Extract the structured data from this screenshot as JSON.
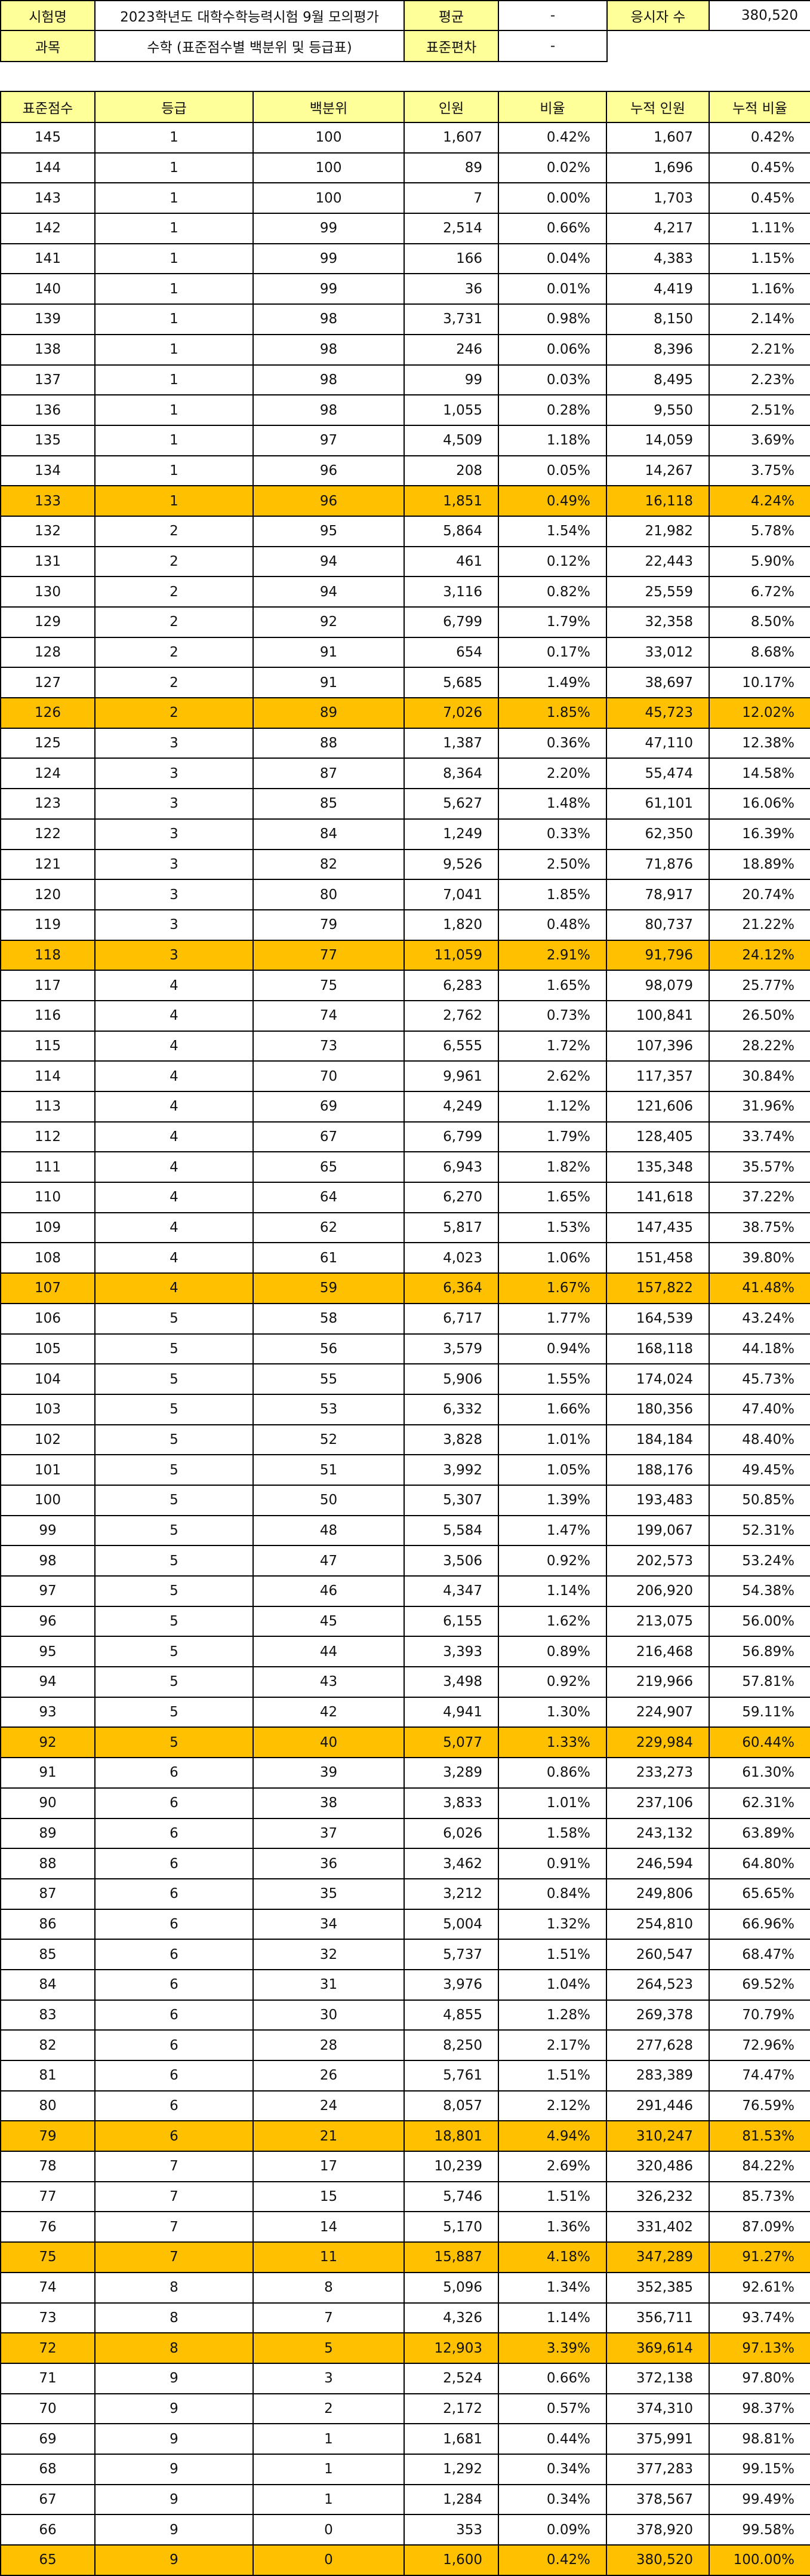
{
  "info": {
    "exam_label": "시험명",
    "exam_value": "2023학년도 대학수학능력시험 9월 모의평가",
    "mean_label": "평균",
    "mean_value": "-",
    "count_label": "응시자 수",
    "count_value": "380,520",
    "subject_label": "과목",
    "subject_value": "수학 (표준점수별 백분위 및 등급표)",
    "sd_label": "표준편차",
    "sd_value": "-"
  },
  "table": {
    "headers": [
      "표준점수",
      "등급",
      "백분위",
      "인원",
      "비율",
      "누적 인원",
      "누적 비율"
    ],
    "rows": [
      {
        "score": "145",
        "grade": "1",
        "pct": "100",
        "count": "1,607",
        "ratio": "0.42%",
        "cum": "1,607",
        "cumratio": "0.42%",
        "hl": false
      },
      {
        "score": "144",
        "grade": "1",
        "pct": "100",
        "count": "89",
        "ratio": "0.02%",
        "cum": "1,696",
        "cumratio": "0.45%",
        "hl": false
      },
      {
        "score": "143",
        "grade": "1",
        "pct": "100",
        "count": "7",
        "ratio": "0.00%",
        "cum": "1,703",
        "cumratio": "0.45%",
        "hl": false
      },
      {
        "score": "142",
        "grade": "1",
        "pct": "99",
        "count": "2,514",
        "ratio": "0.66%",
        "cum": "4,217",
        "cumratio": "1.11%",
        "hl": false
      },
      {
        "score": "141",
        "grade": "1",
        "pct": "99",
        "count": "166",
        "ratio": "0.04%",
        "cum": "4,383",
        "cumratio": "1.15%",
        "hl": false
      },
      {
        "score": "140",
        "grade": "1",
        "pct": "99",
        "count": "36",
        "ratio": "0.01%",
        "cum": "4,419",
        "cumratio": "1.16%",
        "hl": false
      },
      {
        "score": "139",
        "grade": "1",
        "pct": "98",
        "count": "3,731",
        "ratio": "0.98%",
        "cum": "8,150",
        "cumratio": "2.14%",
        "hl": false
      },
      {
        "score": "138",
        "grade": "1",
        "pct": "98",
        "count": "246",
        "ratio": "0.06%",
        "cum": "8,396",
        "cumratio": "2.21%",
        "hl": false
      },
      {
        "score": "137",
        "grade": "1",
        "pct": "98",
        "count": "99",
        "ratio": "0.03%",
        "cum": "8,495",
        "cumratio": "2.23%",
        "hl": false
      },
      {
        "score": "136",
        "grade": "1",
        "pct": "98",
        "count": "1,055",
        "ratio": "0.28%",
        "cum": "9,550",
        "cumratio": "2.51%",
        "hl": false
      },
      {
        "score": "135",
        "grade": "1",
        "pct": "97",
        "count": "4,509",
        "ratio": "1.18%",
        "cum": "14,059",
        "cumratio": "3.69%",
        "hl": false
      },
      {
        "score": "134",
        "grade": "1",
        "pct": "96",
        "count": "208",
        "ratio": "0.05%",
        "cum": "14,267",
        "cumratio": "3.75%",
        "hl": false
      },
      {
        "score": "133",
        "grade": "1",
        "pct": "96",
        "count": "1,851",
        "ratio": "0.49%",
        "cum": "16,118",
        "cumratio": "4.24%",
        "hl": true
      },
      {
        "score": "132",
        "grade": "2",
        "pct": "95",
        "count": "5,864",
        "ratio": "1.54%",
        "cum": "21,982",
        "cumratio": "5.78%",
        "hl": false
      },
      {
        "score": "131",
        "grade": "2",
        "pct": "94",
        "count": "461",
        "ratio": "0.12%",
        "cum": "22,443",
        "cumratio": "5.90%",
        "hl": false
      },
      {
        "score": "130",
        "grade": "2",
        "pct": "94",
        "count": "3,116",
        "ratio": "0.82%",
        "cum": "25,559",
        "cumratio": "6.72%",
        "hl": false
      },
      {
        "score": "129",
        "grade": "2",
        "pct": "92",
        "count": "6,799",
        "ratio": "1.79%",
        "cum": "32,358",
        "cumratio": "8.50%",
        "hl": false
      },
      {
        "score": "128",
        "grade": "2",
        "pct": "91",
        "count": "654",
        "ratio": "0.17%",
        "cum": "33,012",
        "cumratio": "8.68%",
        "hl": false
      },
      {
        "score": "127",
        "grade": "2",
        "pct": "91",
        "count": "5,685",
        "ratio": "1.49%",
        "cum": "38,697",
        "cumratio": "10.17%",
        "hl": false
      },
      {
        "score": "126",
        "grade": "2",
        "pct": "89",
        "count": "7,026",
        "ratio": "1.85%",
        "cum": "45,723",
        "cumratio": "12.02%",
        "hl": true
      },
      {
        "score": "125",
        "grade": "3",
        "pct": "88",
        "count": "1,387",
        "ratio": "0.36%",
        "cum": "47,110",
        "cumratio": "12.38%",
        "hl": false
      },
      {
        "score": "124",
        "grade": "3",
        "pct": "87",
        "count": "8,364",
        "ratio": "2.20%",
        "cum": "55,474",
        "cumratio": "14.58%",
        "hl": false
      },
      {
        "score": "123",
        "grade": "3",
        "pct": "85",
        "count": "5,627",
        "ratio": "1.48%",
        "cum": "61,101",
        "cumratio": "16.06%",
        "hl": false
      },
      {
        "score": "122",
        "grade": "3",
        "pct": "84",
        "count": "1,249",
        "ratio": "0.33%",
        "cum": "62,350",
        "cumratio": "16.39%",
        "hl": false
      },
      {
        "score": "121",
        "grade": "3",
        "pct": "82",
        "count": "9,526",
        "ratio": "2.50%",
        "cum": "71,876",
        "cumratio": "18.89%",
        "hl": false
      },
      {
        "score": "120",
        "grade": "3",
        "pct": "80",
        "count": "7,041",
        "ratio": "1.85%",
        "cum": "78,917",
        "cumratio": "20.74%",
        "hl": false
      },
      {
        "score": "119",
        "grade": "3",
        "pct": "79",
        "count": "1,820",
        "ratio": "0.48%",
        "cum": "80,737",
        "cumratio": "21.22%",
        "hl": false
      },
      {
        "score": "118",
        "grade": "3",
        "pct": "77",
        "count": "11,059",
        "ratio": "2.91%",
        "cum": "91,796",
        "cumratio": "24.12%",
        "hl": true
      },
      {
        "score": "117",
        "grade": "4",
        "pct": "75",
        "count": "6,283",
        "ratio": "1.65%",
        "cum": "98,079",
        "cumratio": "25.77%",
        "hl": false
      },
      {
        "score": "116",
        "grade": "4",
        "pct": "74",
        "count": "2,762",
        "ratio": "0.73%",
        "cum": "100,841",
        "cumratio": "26.50%",
        "hl": false
      },
      {
        "score": "115",
        "grade": "4",
        "pct": "73",
        "count": "6,555",
        "ratio": "1.72%",
        "cum": "107,396",
        "cumratio": "28.22%",
        "hl": false
      },
      {
        "score": "114",
        "grade": "4",
        "pct": "70",
        "count": "9,961",
        "ratio": "2.62%",
        "cum": "117,357",
        "cumratio": "30.84%",
        "hl": false
      },
      {
        "score": "113",
        "grade": "4",
        "pct": "69",
        "count": "4,249",
        "ratio": "1.12%",
        "cum": "121,606",
        "cumratio": "31.96%",
        "hl": false
      },
      {
        "score": "112",
        "grade": "4",
        "pct": "67",
        "count": "6,799",
        "ratio": "1.79%",
        "cum": "128,405",
        "cumratio": "33.74%",
        "hl": false
      },
      {
        "score": "111",
        "grade": "4",
        "pct": "65",
        "count": "6,943",
        "ratio": "1.82%",
        "cum": "135,348",
        "cumratio": "35.57%",
        "hl": false
      },
      {
        "score": "110",
        "grade": "4",
        "pct": "64",
        "count": "6,270",
        "ratio": "1.65%",
        "cum": "141,618",
        "cumratio": "37.22%",
        "hl": false
      },
      {
        "score": "109",
        "grade": "4",
        "pct": "62",
        "count": "5,817",
        "ratio": "1.53%",
        "cum": "147,435",
        "cumratio": "38.75%",
        "hl": false
      },
      {
        "score": "108",
        "grade": "4",
        "pct": "61",
        "count": "4,023",
        "ratio": "1.06%",
        "cum": "151,458",
        "cumratio": "39.80%",
        "hl": false
      },
      {
        "score": "107",
        "grade": "4",
        "pct": "59",
        "count": "6,364",
        "ratio": "1.67%",
        "cum": "157,822",
        "cumratio": "41.48%",
        "hl": true
      },
      {
        "score": "106",
        "grade": "5",
        "pct": "58",
        "count": "6,717",
        "ratio": "1.77%",
        "cum": "164,539",
        "cumratio": "43.24%",
        "hl": false
      },
      {
        "score": "105",
        "grade": "5",
        "pct": "56",
        "count": "3,579",
        "ratio": "0.94%",
        "cum": "168,118",
        "cumratio": "44.18%",
        "hl": false
      },
      {
        "score": "104",
        "grade": "5",
        "pct": "55",
        "count": "5,906",
        "ratio": "1.55%",
        "cum": "174,024",
        "cumratio": "45.73%",
        "hl": false
      },
      {
        "score": "103",
        "grade": "5",
        "pct": "53",
        "count": "6,332",
        "ratio": "1.66%",
        "cum": "180,356",
        "cumratio": "47.40%",
        "hl": false
      },
      {
        "score": "102",
        "grade": "5",
        "pct": "52",
        "count": "3,828",
        "ratio": "1.01%",
        "cum": "184,184",
        "cumratio": "48.40%",
        "hl": false
      },
      {
        "score": "101",
        "grade": "5",
        "pct": "51",
        "count": "3,992",
        "ratio": "1.05%",
        "cum": "188,176",
        "cumratio": "49.45%",
        "hl": false
      },
      {
        "score": "100",
        "grade": "5",
        "pct": "50",
        "count": "5,307",
        "ratio": "1.39%",
        "cum": "193,483",
        "cumratio": "50.85%",
        "hl": false
      },
      {
        "score": "99",
        "grade": "5",
        "pct": "48",
        "count": "5,584",
        "ratio": "1.47%",
        "cum": "199,067",
        "cumratio": "52.31%",
        "hl": false
      },
      {
        "score": "98",
        "grade": "5",
        "pct": "47",
        "count": "3,506",
        "ratio": "0.92%",
        "cum": "202,573",
        "cumratio": "53.24%",
        "hl": false
      },
      {
        "score": "97",
        "grade": "5",
        "pct": "46",
        "count": "4,347",
        "ratio": "1.14%",
        "cum": "206,920",
        "cumratio": "54.38%",
        "hl": false
      },
      {
        "score": "96",
        "grade": "5",
        "pct": "45",
        "count": "6,155",
        "ratio": "1.62%",
        "cum": "213,075",
        "cumratio": "56.00%",
        "hl": false
      },
      {
        "score": "95",
        "grade": "5",
        "pct": "44",
        "count": "3,393",
        "ratio": "0.89%",
        "cum": "216,468",
        "cumratio": "56.89%",
        "hl": false
      },
      {
        "score": "94",
        "grade": "5",
        "pct": "43",
        "count": "3,498",
        "ratio": "0.92%",
        "cum": "219,966",
        "cumratio": "57.81%",
        "hl": false
      },
      {
        "score": "93",
        "grade": "5",
        "pct": "42",
        "count": "4,941",
        "ratio": "1.30%",
        "cum": "224,907",
        "cumratio": "59.11%",
        "hl": false
      },
      {
        "score": "92",
        "grade": "5",
        "pct": "40",
        "count": "5,077",
        "ratio": "1.33%",
        "cum": "229,984",
        "cumratio": "60.44%",
        "hl": true
      },
      {
        "score": "91",
        "grade": "6",
        "pct": "39",
        "count": "3,289",
        "ratio": "0.86%",
        "cum": "233,273",
        "cumratio": "61.30%",
        "hl": false
      },
      {
        "score": "90",
        "grade": "6",
        "pct": "38",
        "count": "3,833",
        "ratio": "1.01%",
        "cum": "237,106",
        "cumratio": "62.31%",
        "hl": false
      },
      {
        "score": "89",
        "grade": "6",
        "pct": "37",
        "count": "6,026",
        "ratio": "1.58%",
        "cum": "243,132",
        "cumratio": "63.89%",
        "hl": false
      },
      {
        "score": "88",
        "grade": "6",
        "pct": "36",
        "count": "3,462",
        "ratio": "0.91%",
        "cum": "246,594",
        "cumratio": "64.80%",
        "hl": false
      },
      {
        "score": "87",
        "grade": "6",
        "pct": "35",
        "count": "3,212",
        "ratio": "0.84%",
        "cum": "249,806",
        "cumratio": "65.65%",
        "hl": false
      },
      {
        "score": "86",
        "grade": "6",
        "pct": "34",
        "count": "5,004",
        "ratio": "1.32%",
        "cum": "254,810",
        "cumratio": "66.96%",
        "hl": false
      },
      {
        "score": "85",
        "grade": "6",
        "pct": "32",
        "count": "5,737",
        "ratio": "1.51%",
        "cum": "260,547",
        "cumratio": "68.47%",
        "hl": false
      },
      {
        "score": "84",
        "grade": "6",
        "pct": "31",
        "count": "3,976",
        "ratio": "1.04%",
        "cum": "264,523",
        "cumratio": "69.52%",
        "hl": false
      },
      {
        "score": "83",
        "grade": "6",
        "pct": "30",
        "count": "4,855",
        "ratio": "1.28%",
        "cum": "269,378",
        "cumratio": "70.79%",
        "hl": false
      },
      {
        "score": "82",
        "grade": "6",
        "pct": "28",
        "count": "8,250",
        "ratio": "2.17%",
        "cum": "277,628",
        "cumratio": "72.96%",
        "hl": false
      },
      {
        "score": "81",
        "grade": "6",
        "pct": "26",
        "count": "5,761",
        "ratio": "1.51%",
        "cum": "283,389",
        "cumratio": "74.47%",
        "hl": false
      },
      {
        "score": "80",
        "grade": "6",
        "pct": "24",
        "count": "8,057",
        "ratio": "2.12%",
        "cum": "291,446",
        "cumratio": "76.59%",
        "hl": false
      },
      {
        "score": "79",
        "grade": "6",
        "pct": "21",
        "count": "18,801",
        "ratio": "4.94%",
        "cum": "310,247",
        "cumratio": "81.53%",
        "hl": true
      },
      {
        "score": "78",
        "grade": "7",
        "pct": "17",
        "count": "10,239",
        "ratio": "2.69%",
        "cum": "320,486",
        "cumratio": "84.22%",
        "hl": false
      },
      {
        "score": "77",
        "grade": "7",
        "pct": "15",
        "count": "5,746",
        "ratio": "1.51%",
        "cum": "326,232",
        "cumratio": "85.73%",
        "hl": false
      },
      {
        "score": "76",
        "grade": "7",
        "pct": "14",
        "count": "5,170",
        "ratio": "1.36%",
        "cum": "331,402",
        "cumratio": "87.09%",
        "hl": false
      },
      {
        "score": "75",
        "grade": "7",
        "pct": "11",
        "count": "15,887",
        "ratio": "4.18%",
        "cum": "347,289",
        "cumratio": "91.27%",
        "hl": true
      },
      {
        "score": "74",
        "grade": "8",
        "pct": "8",
        "count": "5,096",
        "ratio": "1.34%",
        "cum": "352,385",
        "cumratio": "92.61%",
        "hl": false
      },
      {
        "score": "73",
        "grade": "8",
        "pct": "7",
        "count": "4,326",
        "ratio": "1.14%",
        "cum": "356,711",
        "cumratio": "93.74%",
        "hl": false
      },
      {
        "score": "72",
        "grade": "8",
        "pct": "5",
        "count": "12,903",
        "ratio": "3.39%",
        "cum": "369,614",
        "cumratio": "97.13%",
        "hl": true
      },
      {
        "score": "71",
        "grade": "9",
        "pct": "3",
        "count": "2,524",
        "ratio": "0.66%",
        "cum": "372,138",
        "cumratio": "97.80%",
        "hl": false
      },
      {
        "score": "70",
        "grade": "9",
        "pct": "2",
        "count": "2,172",
        "ratio": "0.57%",
        "cum": "374,310",
        "cumratio": "98.37%",
        "hl": false
      },
      {
        "score": "69",
        "grade": "9",
        "pct": "1",
        "count": "1,681",
        "ratio": "0.44%",
        "cum": "375,991",
        "cumratio": "98.81%",
        "hl": false
      },
      {
        "score": "68",
        "grade": "9",
        "pct": "1",
        "count": "1,292",
        "ratio": "0.34%",
        "cum": "377,283",
        "cumratio": "99.15%",
        "hl": false
      },
      {
        "score": "67",
        "grade": "9",
        "pct": "1",
        "count": "1,284",
        "ratio": "0.34%",
        "cum": "378,567",
        "cumratio": "99.49%",
        "hl": false
      },
      {
        "score": "66",
        "grade": "9",
        "pct": "0",
        "count": "353",
        "ratio": "0.09%",
        "cum": "378,920",
        "cumratio": "99.58%",
        "hl": false
      },
      {
        "score": "65",
        "grade": "9",
        "pct": "0",
        "count": "1,600",
        "ratio": "0.42%",
        "cum": "380,520",
        "cumratio": "100.00%",
        "hl": true
      }
    ]
  },
  "colors": {
    "header_fill": "#ffff99",
    "highlight_fill": "#ffc000"
  }
}
